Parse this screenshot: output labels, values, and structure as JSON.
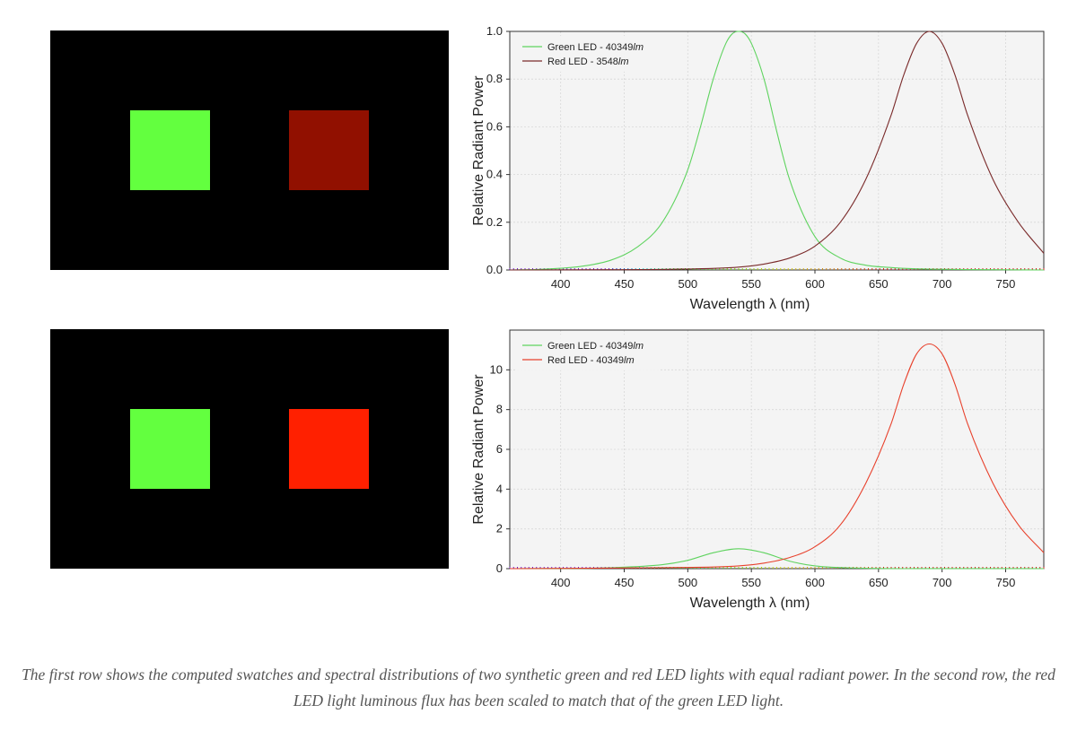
{
  "rows": [
    {
      "swatches": [
        {
          "name": "green-led-swatch",
          "color": "#63ff3f"
        },
        {
          "name": "red-led-swatch",
          "color": "#911000"
        }
      ]
    },
    {
      "swatches": [
        {
          "name": "green-led-swatch",
          "color": "#63ff3f"
        },
        {
          "name": "red-led-swatch",
          "color": "#ff2000"
        }
      ]
    }
  ],
  "chart_data": [
    {
      "type": "line",
      "title": "",
      "xlabel": "Wavelength λ (nm)",
      "ylabel": "Relative Radiant Power",
      "xlim": [
        360,
        780
      ],
      "ylim": [
        0,
        1.0
      ],
      "xticks": [
        400,
        450,
        500,
        550,
        600,
        650,
        700,
        750
      ],
      "yticks": [
        0.0,
        0.2,
        0.4,
        0.6,
        0.8,
        1.0
      ],
      "ytick_labels": [
        "0.0",
        "0.2",
        "0.4",
        "0.6",
        "0.8",
        "1.0"
      ],
      "grid": true,
      "legend_position": "top-left",
      "series": [
        {
          "name": "Green LED - 40349lm",
          "legend_prefix": "Green LED - 40349",
          "legend_unit": "lm",
          "color": "#5fd35f",
          "x": [
            360,
            380,
            400,
            420,
            440,
            460,
            480,
            500,
            510,
            520,
            530,
            535,
            540,
            545,
            550,
            560,
            570,
            580,
            600,
            620,
            640,
            660,
            680,
            700,
            740,
            780
          ],
          "y": [
            0.0,
            0.002,
            0.007,
            0.018,
            0.042,
            0.095,
            0.2,
            0.42,
            0.6,
            0.8,
            0.95,
            0.99,
            1.0,
            0.99,
            0.95,
            0.8,
            0.58,
            0.38,
            0.14,
            0.05,
            0.02,
            0.01,
            0.005,
            0.003,
            0.001,
            0.0
          ]
        },
        {
          "name": "Red LED - 3548lm",
          "legend_prefix": "Red LED - 3548",
          "legend_unit": "lm",
          "color": "#7a2a2a",
          "x": [
            360,
            440,
            500,
            540,
            560,
            580,
            600,
            620,
            640,
            660,
            670,
            680,
            690,
            700,
            710,
            720,
            740,
            760,
            780
          ],
          "y": [
            0.0,
            0.001,
            0.004,
            0.012,
            0.025,
            0.05,
            0.1,
            0.2,
            0.38,
            0.65,
            0.82,
            0.95,
            1.0,
            0.95,
            0.82,
            0.65,
            0.38,
            0.2,
            0.07
          ]
        }
      ]
    },
    {
      "type": "line",
      "title": "",
      "xlabel": "Wavelength λ (nm)",
      "ylabel": "Relative Radiant Power",
      "xlim": [
        360,
        780
      ],
      "ylim": [
        0,
        12
      ],
      "xticks": [
        400,
        450,
        500,
        550,
        600,
        650,
        700,
        750
      ],
      "yticks": [
        0,
        2,
        4,
        6,
        8,
        10
      ],
      "ytick_labels": [
        "0",
        "2",
        "4",
        "6",
        "8",
        "10"
      ],
      "grid": true,
      "legend_position": "top-left",
      "series": [
        {
          "name": "Green LED - 40349lm",
          "legend_prefix": "Green LED - 40349",
          "legend_unit": "lm",
          "color": "#5fd35f",
          "x": [
            360,
            400,
            440,
            480,
            500,
            520,
            540,
            560,
            580,
            600,
            640,
            700,
            780
          ],
          "y": [
            0.0,
            0.01,
            0.05,
            0.2,
            0.42,
            0.8,
            1.0,
            0.8,
            0.38,
            0.14,
            0.02,
            0.003,
            0.0
          ]
        },
        {
          "name": "Red LED - 40349lm",
          "legend_prefix": "Red LED - 40349",
          "legend_unit": "lm",
          "color": "#e8412c",
          "x": [
            360,
            480,
            540,
            560,
            580,
            600,
            620,
            640,
            660,
            670,
            680,
            690,
            700,
            710,
            720,
            740,
            760,
            780
          ],
          "y": [
            0.0,
            0.05,
            0.14,
            0.28,
            0.56,
            1.1,
            2.2,
            4.3,
            7.3,
            9.3,
            10.8,
            11.3,
            10.8,
            9.3,
            7.3,
            4.3,
            2.2,
            0.8
          ]
        }
      ]
    }
  ],
  "caption": "The first row shows the computed swatches and spectral distributions of two synthetic green and red LED lights with equal radiant power. In the second row, the red LED light luminous flux has been scaled to match that of the green LED light."
}
